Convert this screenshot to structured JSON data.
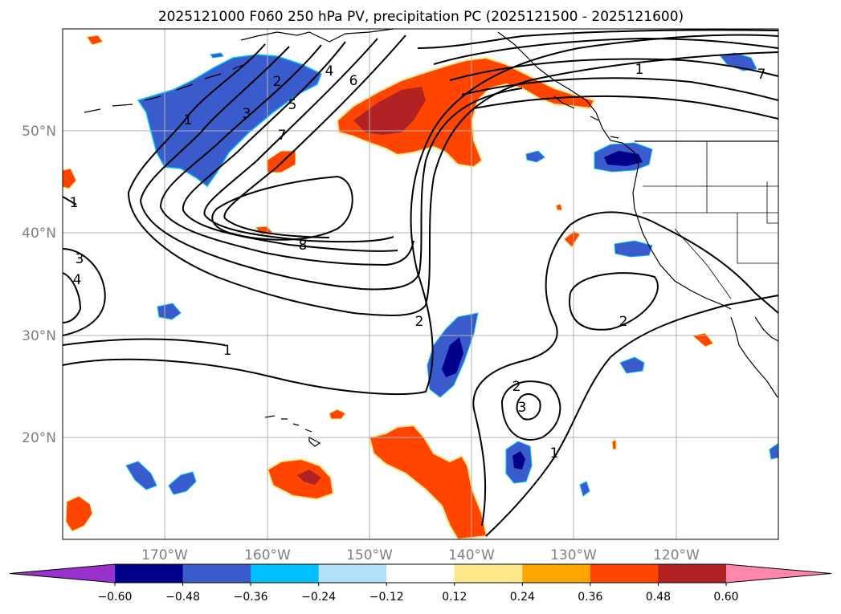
{
  "title": "2025121000 F060 250 hPa PV, precipitation PC (2025121500 - 2025121600)",
  "lat_labels": [
    "50°N",
    "40°N",
    "30°N",
    "20°N"
  ],
  "lon_labels": [
    "170°W",
    "160°W",
    "150°W",
    "140°W",
    "130°W",
    "120°W"
  ],
  "contour_labels": [
    "1",
    "2",
    "3",
    "4",
    "5",
    "6",
    "7",
    "8",
    "1",
    "3",
    "4",
    "1",
    "2",
    "2",
    "2",
    "3",
    "1",
    "1",
    "7"
  ],
  "colorbar": {
    "ticks": [
      "−0.60",
      "−0.48",
      "−0.36",
      "−0.24",
      "−0.12",
      "0.12",
      "0.24",
      "0.36",
      "0.48",
      "0.60"
    ],
    "colors": [
      "#9932cc",
      "#00008b",
      "#3a5bcc",
      "#00bfff",
      "#b0e0fa",
      "#ffffff",
      "#ffe88a",
      "#ffa500",
      "#ff4500",
      "#b22222",
      "#ff88aa"
    ]
  },
  "colors": {
    "neg_strong": "#00008b",
    "neg": "#3a5bcc",
    "neg_light": "#00bfff",
    "pos_light": "#ffe88a",
    "pos": "#ff4500",
    "pos_strong": "#b22222",
    "grid": "#b0b0b0"
  }
}
